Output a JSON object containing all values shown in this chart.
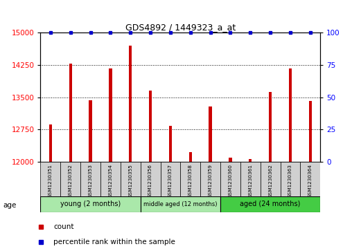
{
  "title": "GDS4892 / 1449323_a_at",
  "samples": [
    "GSM1230351",
    "GSM1230352",
    "GSM1230353",
    "GSM1230354",
    "GSM1230355",
    "GSM1230356",
    "GSM1230357",
    "GSM1230358",
    "GSM1230359",
    "GSM1230360",
    "GSM1230361",
    "GSM1230362",
    "GSM1230363",
    "GSM1230364"
  ],
  "counts": [
    12870,
    14280,
    13430,
    14170,
    14700,
    13650,
    12840,
    12230,
    13290,
    12100,
    12060,
    13620,
    14170,
    13420
  ],
  "percentile": [
    100,
    100,
    100,
    100,
    100,
    100,
    100,
    100,
    100,
    100,
    100,
    100,
    100,
    100
  ],
  "ylim_left": [
    12000,
    15000
  ],
  "ylim_right": [
    0,
    100
  ],
  "yticks_left": [
    12000,
    12750,
    13500,
    14250,
    15000
  ],
  "yticks_right": [
    0,
    25,
    50,
    75,
    100
  ],
  "bar_color": "#cc0000",
  "dot_color": "#0000cc",
  "group_labels": [
    "young (2 months)",
    "middle aged (12 months)",
    "aged (24 months)"
  ],
  "group_ranges": [
    [
      0,
      5
    ],
    [
      5,
      9
    ],
    [
      9,
      14
    ]
  ],
  "group_colors": [
    "#aae8aa",
    "#aae8aa",
    "#44cc44"
  ],
  "legend_count_label": "count",
  "legend_pct_label": "percentile rank within the sample",
  "age_label": "age",
  "bar_width": 0.15,
  "dot_size": 4,
  "grid_color": "#000000",
  "bg_color": "#ffffff",
  "label_box_color": "#d0d0d0"
}
